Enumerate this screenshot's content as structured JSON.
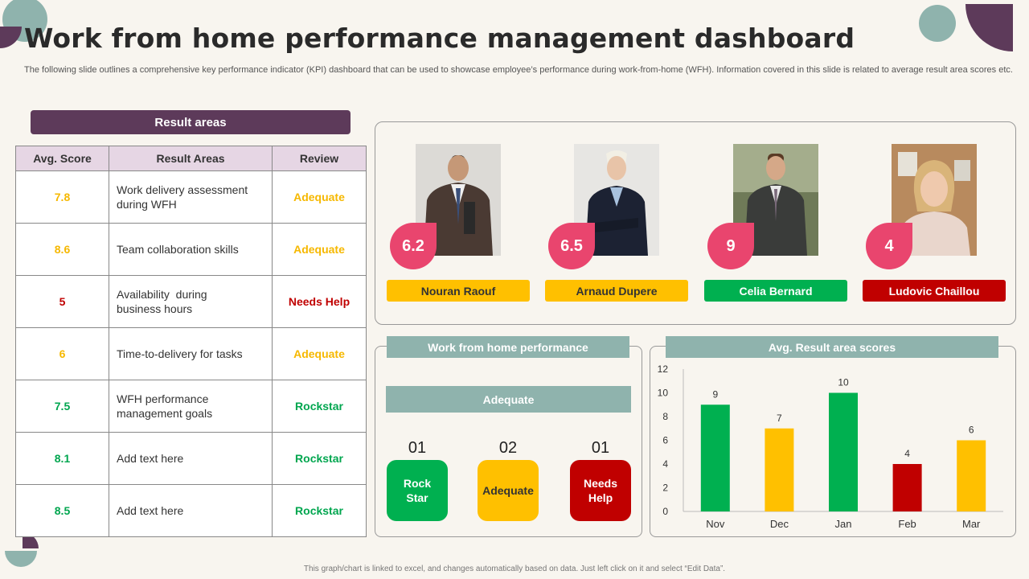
{
  "title": "Work from home performance management dashboard",
  "subtitle": "The following slide outlines a comprehensive key performance indicator (KPI) dashboard that can be used to showcase employee’s performance during work-from-home (WFH). Information covered in this slide is related to average result area scores etc.",
  "footer": "This graph/chart is linked to excel, and changes automatically based on data. Just left click on it and select “Edit Data”.",
  "result_areas": {
    "header": "Result areas",
    "columns": [
      "Avg. Score",
      "Result Areas",
      "Review"
    ],
    "rows": [
      {
        "score": "7.8",
        "area_line1": "Work delivery assessment",
        "area_line2": "during WFH",
        "review": "Adequate"
      },
      {
        "score": "8.6",
        "area_line1": "Team collaboration skills",
        "area_line2": "",
        "review": "Adequate"
      },
      {
        "score": "5",
        "area_line1": "Availability  during",
        "area_line2": "business hours",
        "review": "Needs Help"
      },
      {
        "score": "6",
        "area_line1": "Time-to-delivery for tasks",
        "area_line2": "",
        "review": "Adequate"
      },
      {
        "score": "7.5",
        "area_line1": "WFH performance",
        "area_line2": "management goals",
        "review": "Rockstar"
      },
      {
        "score": "8.1",
        "area_line1": "Add text here",
        "area_line2": "",
        "review": "Rockstar"
      },
      {
        "score": "8.5",
        "area_line1": "Add text here",
        "area_line2": "",
        "review": "Rockstar"
      }
    ]
  },
  "people": [
    {
      "name": "Nouran Raouf",
      "score": "6.2",
      "label_color": "#ffc000",
      "text_color": "#333333"
    },
    {
      "name": "Arnaud Dupere",
      "score": "6.5",
      "label_color": "#ffc000",
      "text_color": "#333333"
    },
    {
      "name": "Celia Bernard",
      "score": "9",
      "label_color": "#00b050",
      "text_color": "#ffffff"
    },
    {
      "name": "Ludovic Chaillou",
      "score": "4",
      "label_color": "#c00000",
      "text_color": "#ffffff"
    }
  ],
  "wfh_performance": {
    "header": "Work from home performance",
    "current_status": "Adequate",
    "statuses": [
      {
        "count": "01",
        "label_line1": "Rock",
        "label_line2": "Star",
        "color": "#00b050",
        "text_color": "#ffffff"
      },
      {
        "count": "02",
        "label_line1": "Adequate",
        "label_line2": "",
        "color": "#ffc000",
        "text_color": "#333333"
      },
      {
        "count": "01",
        "label_line1": "Needs",
        "label_line2": "Help",
        "color": "#c00000",
        "text_color": "#ffffff"
      }
    ]
  },
  "chart_data": {
    "type": "bar",
    "title": "Avg. Result area scores",
    "categories": [
      "Nov",
      "Dec",
      "Jan",
      "Feb",
      "Mar"
    ],
    "values": [
      9,
      7,
      10,
      4,
      6
    ],
    "colors": [
      "#00b050",
      "#ffc000",
      "#00b050",
      "#c00000",
      "#ffc000"
    ],
    "ylim": [
      0,
      12
    ],
    "yticks": [
      0,
      2,
      4,
      6,
      8,
      10,
      12
    ],
    "xlabel": "",
    "ylabel": "",
    "grid": false
  },
  "colors": {
    "accent_purple": "#5d3a5a",
    "teal": "#8fb3ad",
    "pink": "#e9456e"
  }
}
